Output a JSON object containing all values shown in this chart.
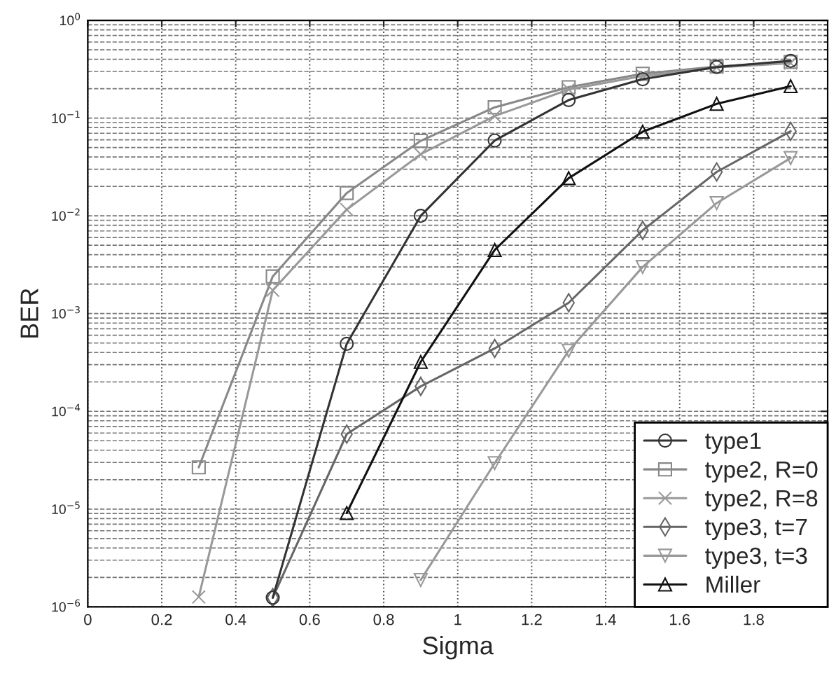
{
  "chart_data": {
    "type": "line",
    "xlabel": "Sigma",
    "ylabel": "BER",
    "log": "y",
    "grid": true,
    "legend": "bottom right",
    "xlim": [
      0,
      2
    ],
    "xticks": [
      0,
      0.2,
      0.4,
      0.6,
      0.8,
      1,
      1.2,
      1.4,
      1.6,
      1.8
    ],
    "ylim": [
      1e-06,
      1
    ],
    "yticks": [
      {
        "value": 1e-06,
        "label": "10$^{−6}$"
      },
      {
        "value": 1e-05,
        "label": "10$^{−5}$"
      },
      {
        "value": 0.0001,
        "label": "10$^{−4}$"
      },
      {
        "value": 0.001,
        "label": "10$^{−3}$"
      },
      {
        "value": 0.01,
        "label": "10$^{−2}$"
      },
      {
        "value": 0.1,
        "label": "10$^{−1}$"
      },
      {
        "value": 1,
        "label": "10$^{0}$"
      }
    ],
    "series": [
      {
        "name": "type1",
        "color": "#333333",
        "marker": "circle",
        "x": [
          0.5,
          0.7,
          0.9,
          1.1,
          1.3,
          1.5,
          1.7,
          1.9
        ],
        "values": [
          1.24e-06,
          0.00049,
          0.01,
          0.059,
          0.153,
          0.25,
          0.333,
          0.385
        ]
      },
      {
        "name": "type2, R=0",
        "color": "#888888",
        "marker": "square",
        "x": [
          0.3,
          0.5,
          0.7,
          0.9,
          1.1,
          1.3,
          1.5,
          1.7,
          1.9
        ],
        "values": [
          2.67e-05,
          0.0024,
          0.0171,
          0.0585,
          0.129,
          0.207,
          0.284,
          0.337,
          0.375
        ]
      },
      {
        "name": "type2, R=8",
        "color": "#999999",
        "marker": "cross",
        "x": [
          0.3,
          0.5,
          0.7,
          0.9,
          1.1,
          1.3,
          1.5,
          1.7,
          1.9
        ],
        "values": [
          1.26e-06,
          0.00173,
          0.0116,
          0.0427,
          0.105,
          0.196,
          0.269,
          0.33,
          0.365
        ]
      },
      {
        "name": "type3, t=7",
        "color": "#666666",
        "marker": "diamond",
        "x": [
          0.5,
          0.7,
          0.9,
          1.1,
          1.3,
          1.5,
          1.7,
          1.9
        ],
        "values": [
          1.24e-06,
          5.85e-05,
          0.00018,
          0.00044,
          0.00129,
          0.0071,
          0.0281,
          0.0733
        ]
      },
      {
        "name": "type3, t=3",
        "color": "#999999",
        "marker": "triangle_down",
        "x": [
          0.9,
          1.1,
          1.3,
          1.5,
          1.7,
          1.9
        ],
        "values": [
          1.88e-06,
          2.95e-05,
          0.000417,
          0.003,
          0.0135,
          0.039
        ]
      },
      {
        "name": "Miller",
        "color": "#111111",
        "marker": "triangle",
        "x": [
          0.7,
          0.9,
          1.1,
          1.3,
          1.5,
          1.7,
          1.9
        ],
        "values": [
          9.1e-06,
          0.00032,
          0.00447,
          0.0243,
          0.0726,
          0.14,
          0.212
        ]
      }
    ]
  }
}
